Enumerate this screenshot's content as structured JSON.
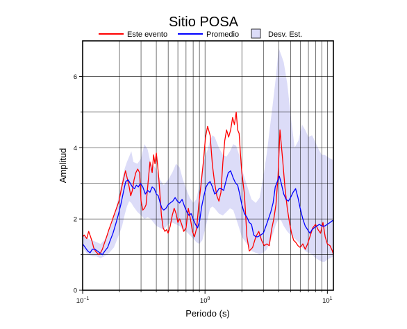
{
  "chart_data": {
    "type": "line",
    "title": "Sitio POSA",
    "xlabel": "Periodo (s)",
    "ylabel": "Amplitud",
    "x_scale": "log",
    "xlim": [
      0.1,
      11.2
    ],
    "ylim": [
      0,
      7.0
    ],
    "grid": true,
    "legend_position": "top",
    "x_tick_labels": [
      {
        "value": 0.1,
        "base": "10",
        "exp": "−1"
      },
      {
        "value": 1,
        "base": "10",
        "exp": "0"
      },
      {
        "value": 10,
        "base": "10",
        "exp": "1"
      }
    ],
    "y_ticks": [
      0,
      2,
      4,
      6
    ],
    "y_tick_labels": [
      "0",
      "2",
      "4",
      "6"
    ],
    "legend": {
      "event_label": "Este evento",
      "mean_label": "Promedio",
      "std_label": "Desv. Est."
    },
    "colors": {
      "event": "#ff0000",
      "mean": "#0000ff",
      "std_fill": "#dcdcf8"
    },
    "series": [
      {
        "name": "Este evento",
        "x": [
          0.1,
          0.103,
          0.108,
          0.112,
          0.116,
          0.12,
          0.123,
          0.127,
          0.131,
          0.135,
          0.14,
          0.145,
          0.15,
          0.157,
          0.164,
          0.172,
          0.18,
          0.189,
          0.198,
          0.206,
          0.215,
          0.224,
          0.233,
          0.24,
          0.247,
          0.255,
          0.263,
          0.272,
          0.282,
          0.292,
          0.3,
          0.31,
          0.32,
          0.33,
          0.342,
          0.355,
          0.37,
          0.38,
          0.39,
          0.4,
          0.41,
          0.42,
          0.43,
          0.44,
          0.455,
          0.47,
          0.485,
          0.5,
          0.52,
          0.54,
          0.56,
          0.58,
          0.6,
          0.62,
          0.645,
          0.67,
          0.7,
          0.73,
          0.76,
          0.79,
          0.82,
          0.855,
          0.89,
          0.93,
          0.97,
          1.01,
          1.05,
          1.1,
          1.15,
          1.2,
          1.25,
          1.3,
          1.35,
          1.4,
          1.45,
          1.5,
          1.56,
          1.62,
          1.68,
          1.74,
          1.8,
          1.85,
          1.9,
          1.95,
          2.0,
          2.1,
          2.2,
          2.3,
          2.45,
          2.6,
          2.75,
          2.9,
          3.05,
          3.2,
          3.35,
          3.5,
          3.65,
          3.8,
          3.95,
          4.1,
          4.3,
          4.5,
          4.7,
          4.9,
          5.1,
          5.3,
          5.5,
          5.75,
          6.0,
          6.3,
          6.6,
          6.9,
          7.2,
          7.6,
          8.0,
          8.4,
          8.8,
          9.2,
          9.6,
          10.0,
          10.5,
          11.0,
          11.2
        ],
        "values": [
          1.5,
          1.55,
          1.45,
          1.65,
          1.5,
          1.35,
          1.2,
          1.1,
          1.05,
          1.0,
          1.05,
          1.15,
          1.3,
          1.5,
          1.7,
          1.9,
          2.1,
          2.3,
          2.5,
          2.8,
          3.1,
          3.35,
          3.1,
          2.9,
          2.65,
          2.8,
          3.1,
          3.3,
          3.4,
          3.3,
          2.5,
          2.25,
          2.3,
          2.4,
          3.0,
          3.6,
          3.3,
          3.8,
          3.55,
          3.85,
          3.5,
          3.1,
          2.6,
          2.1,
          1.75,
          1.65,
          1.7,
          1.6,
          1.8,
          2.1,
          2.3,
          2.15,
          1.9,
          2.0,
          1.85,
          1.65,
          1.75,
          2.3,
          2.0,
          1.65,
          1.5,
          1.75,
          2.4,
          3.0,
          3.6,
          4.3,
          4.6,
          4.35,
          3.5,
          3.0,
          2.65,
          2.5,
          2.75,
          3.6,
          4.2,
          4.5,
          4.3,
          4.5,
          4.85,
          4.65,
          5.0,
          4.5,
          4.4,
          3.8,
          3.3,
          2.7,
          1.5,
          1.1,
          1.2,
          1.5,
          1.65,
          1.4,
          1.25,
          1.3,
          1.25,
          1.7,
          2.0,
          2.4,
          3.2,
          4.5,
          3.7,
          2.9,
          2.3,
          1.9,
          1.6,
          1.4,
          1.35,
          1.25,
          1.2,
          1.3,
          1.15,
          1.3,
          1.5,
          1.75,
          1.85,
          1.7,
          1.6,
          1.9,
          1.5,
          1.3,
          1.25,
          1.1,
          1.0
        ]
      },
      {
        "name": "Promedio",
        "x": [
          0.1,
          0.105,
          0.11,
          0.115,
          0.12,
          0.126,
          0.132,
          0.138,
          0.145,
          0.152,
          0.16,
          0.168,
          0.177,
          0.186,
          0.195,
          0.205,
          0.215,
          0.225,
          0.235,
          0.245,
          0.255,
          0.265,
          0.275,
          0.285,
          0.297,
          0.31,
          0.325,
          0.34,
          0.355,
          0.37,
          0.385,
          0.4,
          0.415,
          0.43,
          0.445,
          0.46,
          0.48,
          0.5,
          0.52,
          0.545,
          0.57,
          0.595,
          0.62,
          0.65,
          0.68,
          0.71,
          0.74,
          0.77,
          0.8,
          0.835,
          0.87,
          0.905,
          0.94,
          0.98,
          1.02,
          1.06,
          1.1,
          1.15,
          1.2,
          1.25,
          1.3,
          1.36,
          1.42,
          1.48,
          1.55,
          1.62,
          1.7,
          1.78,
          1.85,
          1.92,
          2.0,
          2.1,
          2.2,
          2.3,
          2.4,
          2.5,
          2.6,
          2.7,
          2.85,
          3.0,
          3.15,
          3.3,
          3.45,
          3.6,
          3.75,
          3.9,
          4.05,
          4.2,
          4.4,
          4.6,
          4.8,
          5.0,
          5.25,
          5.5,
          5.75,
          6.0,
          6.3,
          6.6,
          6.9,
          7.2,
          7.5,
          7.8,
          8.2,
          8.6,
          9.0,
          9.5,
          10.0,
          10.5,
          11.0,
          11.2
        ],
        "values": [
          1.3,
          1.2,
          1.1,
          1.05,
          1.15,
          1.15,
          1.1,
          1.05,
          1.0,
          1.1,
          1.2,
          1.4,
          1.6,
          1.85,
          2.1,
          2.4,
          2.75,
          3.05,
          3.1,
          3.0,
          2.9,
          2.85,
          2.95,
          2.9,
          3.0,
          2.9,
          2.7,
          2.8,
          2.75,
          2.9,
          2.85,
          2.7,
          2.65,
          2.45,
          2.3,
          2.25,
          2.3,
          2.4,
          2.45,
          2.5,
          2.6,
          2.5,
          2.45,
          2.55,
          2.35,
          2.2,
          2.1,
          2.15,
          2.0,
          1.85,
          1.75,
          1.95,
          2.35,
          2.65,
          2.9,
          3.0,
          3.05,
          2.9,
          2.7,
          2.75,
          2.85,
          2.85,
          2.8,
          3.05,
          3.3,
          3.35,
          3.15,
          3.0,
          2.95,
          2.7,
          2.4,
          2.15,
          2.05,
          1.9,
          1.85,
          1.55,
          1.5,
          1.5,
          1.55,
          1.6,
          1.8,
          2.0,
          2.2,
          2.45,
          2.9,
          3.05,
          3.2,
          3.0,
          2.7,
          2.55,
          2.5,
          2.6,
          2.75,
          2.85,
          2.6,
          2.3,
          2.0,
          1.8,
          1.7,
          1.6,
          1.7,
          1.75,
          1.8,
          1.85,
          1.8,
          1.8,
          1.85,
          1.9,
          1.95,
          1.95
        ]
      }
    ],
    "std_band": {
      "name": "Desv. Est.",
      "x": [
        0.1,
        0.11,
        0.12,
        0.13,
        0.14,
        0.15,
        0.16,
        0.17,
        0.18,
        0.19,
        0.2,
        0.21,
        0.22,
        0.23,
        0.24,
        0.25,
        0.26,
        0.28,
        0.3,
        0.32,
        0.34,
        0.36,
        0.38,
        0.4,
        0.43,
        0.46,
        0.5,
        0.54,
        0.58,
        0.62,
        0.66,
        0.7,
        0.75,
        0.8,
        0.85,
        0.9,
        0.95,
        1.0,
        1.05,
        1.1,
        1.15,
        1.2,
        1.3,
        1.4,
        1.5,
        1.6,
        1.7,
        1.8,
        1.9,
        2.0,
        2.2,
        2.4,
        2.6,
        2.8,
        3.0,
        3.2,
        3.4,
        3.6,
        3.8,
        4.0,
        4.2,
        4.4,
        4.7,
        5.0,
        5.4,
        5.8,
        6.2,
        6.6,
        7.0,
        7.5,
        8.0,
        8.5,
        9.0,
        9.5,
        10.0,
        10.5,
        11.2
      ],
      "lower": [
        1.2,
        1.0,
        0.95,
        0.95,
        0.9,
        0.95,
        1.0,
        1.1,
        1.2,
        1.4,
        1.6,
        1.8,
        2.1,
        2.35,
        2.5,
        2.45,
        2.35,
        2.2,
        2.1,
        2.0,
        2.05,
        2.0,
        1.9,
        1.8,
        1.75,
        1.7,
        1.85,
        1.9,
        1.85,
        1.8,
        1.7,
        1.65,
        1.55,
        1.45,
        1.35,
        1.3,
        1.4,
        1.7,
        2.0,
        2.3,
        2.35,
        2.3,
        2.15,
        2.1,
        2.2,
        2.3,
        2.25,
        2.0,
        1.75,
        1.5,
        1.3,
        1.1,
        1.05,
        1.0,
        1.05,
        1.15,
        1.35,
        1.6,
        1.85,
        2.0,
        1.95,
        1.8,
        1.65,
        1.55,
        1.45,
        1.35,
        1.2,
        1.1,
        1.05,
        1.0,
        0.9,
        0.85,
        0.8,
        0.8,
        0.85,
        0.9,
        0.95
      ],
      "upper": [
        1.55,
        1.45,
        1.4,
        1.35,
        1.3,
        1.4,
        1.55,
        1.8,
        2.05,
        2.4,
        2.75,
        3.1,
        3.4,
        3.6,
        3.75,
        3.9,
        3.6,
        3.55,
        3.7,
        4.1,
        3.95,
        3.55,
        3.5,
        3.4,
        3.1,
        2.95,
        3.1,
        3.3,
        3.55,
        3.45,
        3.1,
        2.85,
        2.6,
        2.45,
        2.55,
        2.95,
        3.4,
        3.75,
        3.95,
        4.2,
        4.35,
        4.3,
        4.0,
        3.8,
        3.75,
        3.9,
        4.1,
        4.05,
        3.8,
        3.4,
        2.95,
        2.55,
        2.45,
        2.6,
        3.2,
        3.85,
        4.6,
        5.3,
        6.0,
        6.8,
        6.6,
        6.4,
        5.8,
        4.95,
        4.0,
        4.2,
        4.65,
        4.5,
        4.3,
        4.35,
        4.15,
        3.95,
        3.8,
        3.8,
        3.75,
        3.7,
        3.65
      ]
    }
  }
}
